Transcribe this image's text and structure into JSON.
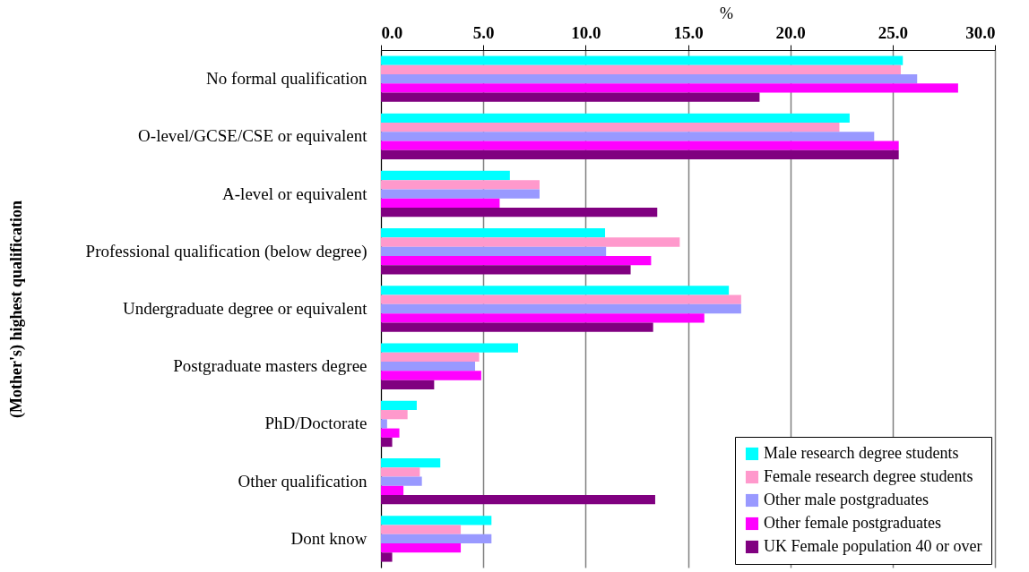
{
  "chart_data": {
    "type": "bar",
    "orientation": "horizontal",
    "xlabel": "%",
    "ylabel": "(Mother's) highest qualification",
    "categories": [
      "No formal qualification",
      "O-level/GCSE/CSE or equivalent",
      "A-level or equivalent",
      "Professional qualification (below degree)",
      "Undergraduate degree or equivalent",
      "Postgraduate masters degree",
      "PhD/Doctorate",
      "Other qualification",
      "Dont know"
    ],
    "series": [
      {
        "name": "Male research degree students",
        "color": "#00ffff",
        "values": [
          25.5,
          22.9,
          6.3,
          10.95,
          17.0,
          6.7,
          1.75,
          2.9,
          5.4
        ]
      },
      {
        "name": "Female research degree students",
        "color": "#ff99cc",
        "values": [
          25.4,
          22.4,
          7.75,
          14.6,
          17.6,
          4.8,
          1.3,
          1.9,
          3.9
        ]
      },
      {
        "name": "Other male postgraduates",
        "color": "#9999ff",
        "values": [
          26.2,
          24.1,
          7.75,
          11.0,
          17.6,
          4.6,
          0.3,
          2.0,
          5.4
        ]
      },
      {
        "name": "Other female postgraduates",
        "color": "#ff00ff",
        "values": [
          28.2,
          25.3,
          5.8,
          13.2,
          15.8,
          4.9,
          0.9,
          1.1,
          3.9
        ]
      },
      {
        "name": "UK Female population 40 or over",
        "color": "#800080",
        "values": [
          18.5,
          25.3,
          13.5,
          12.2,
          13.3,
          2.6,
          0.55,
          13.4,
          0.55
        ]
      }
    ],
    "xlim": [
      0,
      30
    ],
    "xticks": [
      {
        "value": 0,
        "label": "0.0"
      },
      {
        "value": 5,
        "label": "5.0"
      },
      {
        "value": 10,
        "label": "10.0"
      },
      {
        "value": 15,
        "label": "15.0"
      },
      {
        "value": 20,
        "label": "20.0"
      },
      {
        "value": 25,
        "label": "25.0"
      },
      {
        "value": 30,
        "label": "30.0"
      }
    ],
    "grid": "x",
    "legend": "bottom right"
  }
}
